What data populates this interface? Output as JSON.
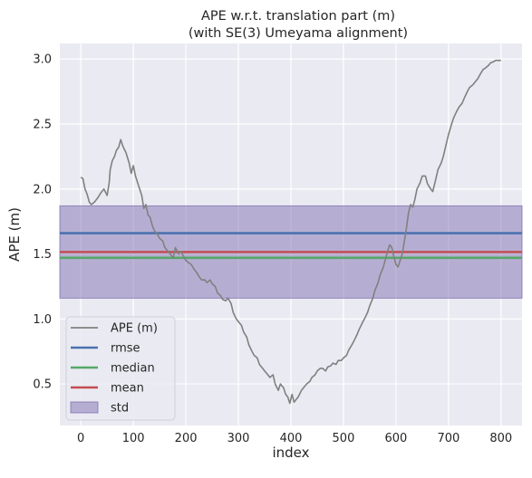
{
  "chart_data": {
    "type": "line",
    "title": "APE w.r.t. translation part (m)",
    "subtitle": "(with SE(3) Umeyama alignment)",
    "xlabel": "index",
    "ylabel": "APE (m)",
    "xlim": [
      -40,
      840
    ],
    "ylim": [
      0.18,
      3.12
    ],
    "grid": true,
    "xticks": [
      {
        "value": 0,
        "label": "0"
      },
      {
        "value": 100,
        "label": "100"
      },
      {
        "value": 200,
        "label": "200"
      },
      {
        "value": 300,
        "label": "300"
      },
      {
        "value": 400,
        "label": "400"
      },
      {
        "value": 500,
        "label": "500"
      },
      {
        "value": 600,
        "label": "600"
      },
      {
        "value": 700,
        "label": "700"
      },
      {
        "value": 800,
        "label": "800"
      }
    ],
    "yticks": [
      {
        "value": 0.5,
        "label": "0.5"
      },
      {
        "value": 1.0,
        "label": "1.0"
      },
      {
        "value": 1.5,
        "label": "1.5"
      },
      {
        "value": 2.0,
        "label": "2.0"
      },
      {
        "value": 2.5,
        "label": "2.5"
      },
      {
        "value": 3.0,
        "label": "3.0"
      }
    ],
    "series": [
      {
        "name": "APE (m)",
        "color": "#808080",
        "x": [
          0,
          4,
          8,
          12,
          16,
          20,
          26,
          32,
          38,
          44,
          50,
          54,
          56,
          60,
          64,
          68,
          72,
          76,
          80,
          86,
          92,
          96,
          100,
          104,
          108,
          112,
          116,
          120,
          124,
          128,
          132,
          136,
          140,
          146,
          150,
          156,
          160,
          166,
          170,
          176,
          180,
          186,
          190,
          196,
          200,
          206,
          210,
          216,
          220,
          226,
          230,
          236,
          240,
          246,
          250,
          256,
          260,
          266,
          270,
          276,
          280,
          286,
          290,
          296,
          300,
          306,
          310,
          316,
          320,
          326,
          330,
          336,
          340,
          346,
          350,
          356,
          360,
          366,
          370,
          376,
          380,
          386,
          390,
          394,
          398,
          402,
          406,
          410,
          414,
          420,
          426,
          430,
          436,
          440,
          446,
          450,
          456,
          460,
          466,
          470,
          476,
          480,
          486,
          490,
          496,
          500,
          506,
          510,
          516,
          520,
          526,
          530,
          536,
          540,
          546,
          550,
          556,
          560,
          566,
          570,
          576,
          580,
          584,
          588,
          592,
          596,
          600,
          604,
          608,
          612,
          616,
          620,
          624,
          628,
          632,
          636,
          640,
          646,
          650,
          656,
          660,
          666,
          670,
          676,
          680,
          686,
          690,
          696,
          700,
          706,
          710,
          716,
          720,
          726,
          730,
          736,
          740,
          746,
          750,
          756,
          760,
          766,
          770,
          776,
          780,
          786,
          790,
          796,
          800
        ],
        "values": [
          2.09,
          2.08,
          2.0,
          1.96,
          1.9,
          1.88,
          1.9,
          1.93,
          1.97,
          2.0,
          1.95,
          2.05,
          2.15,
          2.22,
          2.25,
          2.3,
          2.32,
          2.38,
          2.33,
          2.28,
          2.2,
          2.12,
          2.18,
          2.1,
          2.05,
          2.0,
          1.95,
          1.85,
          1.88,
          1.8,
          1.78,
          1.72,
          1.68,
          1.65,
          1.62,
          1.6,
          1.55,
          1.52,
          1.5,
          1.47,
          1.55,
          1.5,
          1.52,
          1.48,
          1.45,
          1.43,
          1.42,
          1.38,
          1.36,
          1.32,
          1.3,
          1.3,
          1.28,
          1.3,
          1.27,
          1.25,
          1.2,
          1.18,
          1.15,
          1.14,
          1.16,
          1.12,
          1.05,
          1.0,
          0.98,
          0.95,
          0.9,
          0.86,
          0.8,
          0.75,
          0.72,
          0.7,
          0.65,
          0.62,
          0.6,
          0.57,
          0.55,
          0.57,
          0.5,
          0.45,
          0.5,
          0.47,
          0.42,
          0.4,
          0.35,
          0.42,
          0.36,
          0.38,
          0.4,
          0.45,
          0.48,
          0.5,
          0.52,
          0.55,
          0.57,
          0.6,
          0.62,
          0.62,
          0.6,
          0.63,
          0.64,
          0.66,
          0.65,
          0.68,
          0.68,
          0.7,
          0.72,
          0.76,
          0.8,
          0.83,
          0.88,
          0.92,
          0.97,
          1.0,
          1.05,
          1.1,
          1.16,
          1.22,
          1.28,
          1.34,
          1.4,
          1.46,
          1.52,
          1.57,
          1.55,
          1.48,
          1.42,
          1.4,
          1.45,
          1.5,
          1.6,
          1.7,
          1.82,
          1.88,
          1.86,
          1.92,
          2.0,
          2.05,
          2.1,
          2.1,
          2.04,
          2.0,
          1.98,
          2.08,
          2.15,
          2.2,
          2.25,
          2.35,
          2.42,
          2.5,
          2.55,
          2.6,
          2.63,
          2.66,
          2.7,
          2.75,
          2.78,
          2.8,
          2.82,
          2.85,
          2.88,
          2.92,
          2.93,
          2.95,
          2.97,
          2.98,
          2.99,
          2.99,
          2.99
        ]
      },
      {
        "name": "rmse",
        "color": "#4c72b0",
        "values": [
          1.66
        ]
      },
      {
        "name": "median",
        "color": "#55a868",
        "values": [
          1.47
        ]
      },
      {
        "name": "mean",
        "color": "#c44e52",
        "values": [
          1.515
        ]
      },
      {
        "name": "std",
        "color": "#8172b2",
        "values": [
          1.16,
          1.87
        ]
      }
    ],
    "legend_placement": "lower-left"
  }
}
